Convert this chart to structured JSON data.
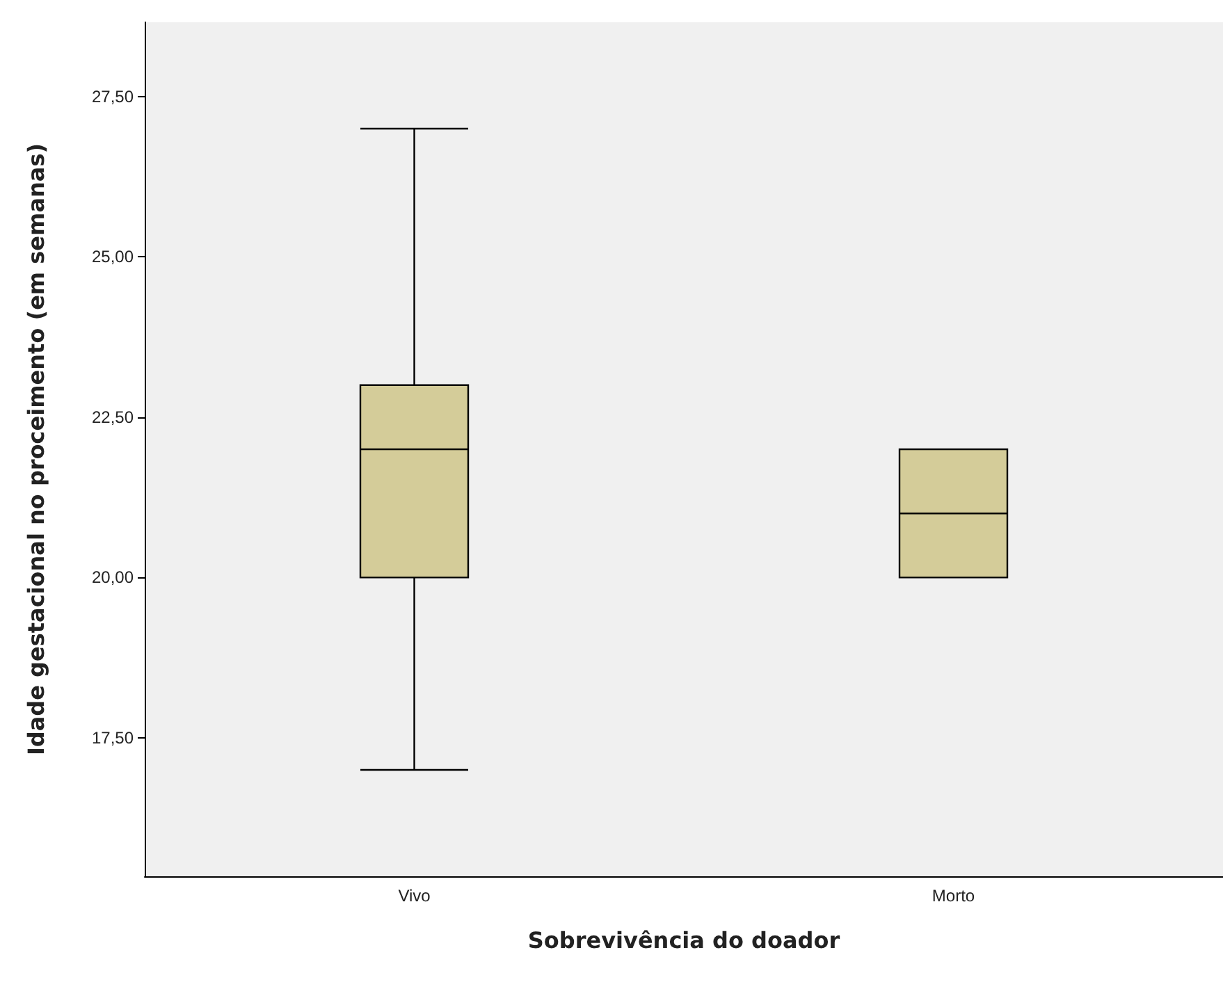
{
  "chart_data": {
    "type": "box",
    "xlabel": "Sobrevivência do doador",
    "ylabel": "Idade gestacional no proceimento (em semanas)",
    "categories": [
      "Vivo",
      "Morto"
    ],
    "color": "#d4cc99",
    "boxes": [
      {
        "low": 17,
        "q1": 20,
        "median": 22,
        "q3": 23,
        "high": 27
      },
      {
        "low": 20,
        "q1": 20,
        "median": 21,
        "q3": 22,
        "high": 22
      }
    ],
    "ylim": [
      15.34,
      28.66
    ],
    "yticks": [
      {
        "value": 17.5,
        "label": "17,50"
      },
      {
        "value": 20,
        "label": "20,00"
      },
      {
        "value": 22.5,
        "label": "22,50"
      },
      {
        "value": 25,
        "label": "25,00"
      },
      {
        "value": 27.5,
        "label": "27,50"
      }
    ],
    "grid": false
  }
}
